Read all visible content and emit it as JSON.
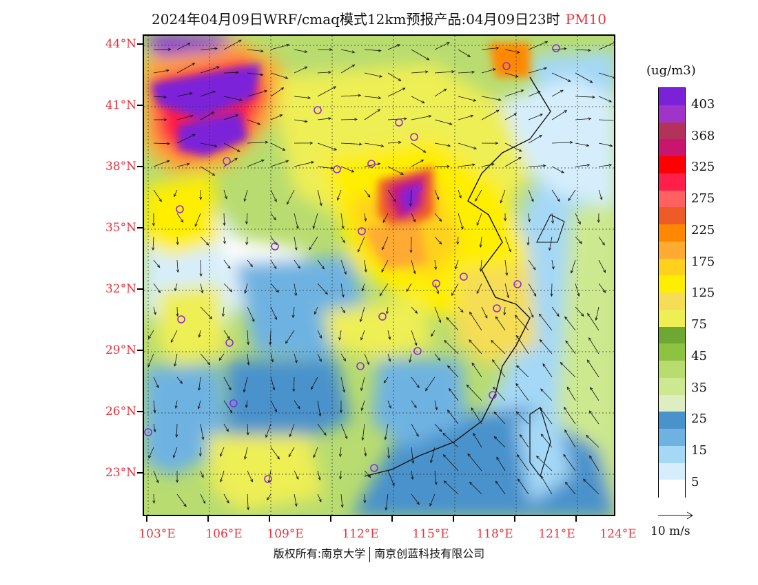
{
  "title": {
    "text": "2024年04月09日WRF/cmaq模式12km预报产品:04月09日23时",
    "variable": "PM10"
  },
  "axes": {
    "lat_labels": [
      "44°N",
      "41°N",
      "38°N",
      "35°N",
      "32°N",
      "29°N",
      "26°N",
      "23°N"
    ],
    "lon_labels": [
      "103°E",
      "106°E",
      "109°E",
      "112°E",
      "115°E",
      "118°E",
      "121°E",
      "124°E"
    ],
    "lat_values": [
      44,
      41,
      38,
      35,
      32,
      29,
      26,
      23
    ],
    "lon_values": [
      103,
      106,
      109,
      112,
      115,
      118,
      121,
      124
    ]
  },
  "legend": {
    "unit": "(ug/m3)",
    "labels": [
      "403",
      "368",
      "325",
      "275",
      "225",
      "175",
      "125",
      "75",
      "45",
      "35",
      "25",
      "15",
      "5"
    ],
    "colors": [
      "#7b22d9",
      "#a033c8",
      "#b2325a",
      "#c8156e",
      "#ff0000",
      "#ff1f4a",
      "#ff6060",
      "#ee5a28",
      "#ff8800",
      "#ffaa33",
      "#ffd01c",
      "#ffee00",
      "#f5dd55",
      "#eeee55",
      "#6ea832",
      "#8ec241",
      "#b8dc70",
      "#cde98f",
      "#dfeec0",
      "#4a92cc",
      "#6eb2e2",
      "#a4d8f6",
      "#d6eefc",
      "#ffffff"
    ]
  },
  "wind_reference": {
    "label": "10 m/s"
  },
  "copyright": {
    "left": "版权所有:南京大学",
    "right": "南京创蓝科技有限公司"
  },
  "colors": {
    "label_red": "#e8303a"
  }
}
